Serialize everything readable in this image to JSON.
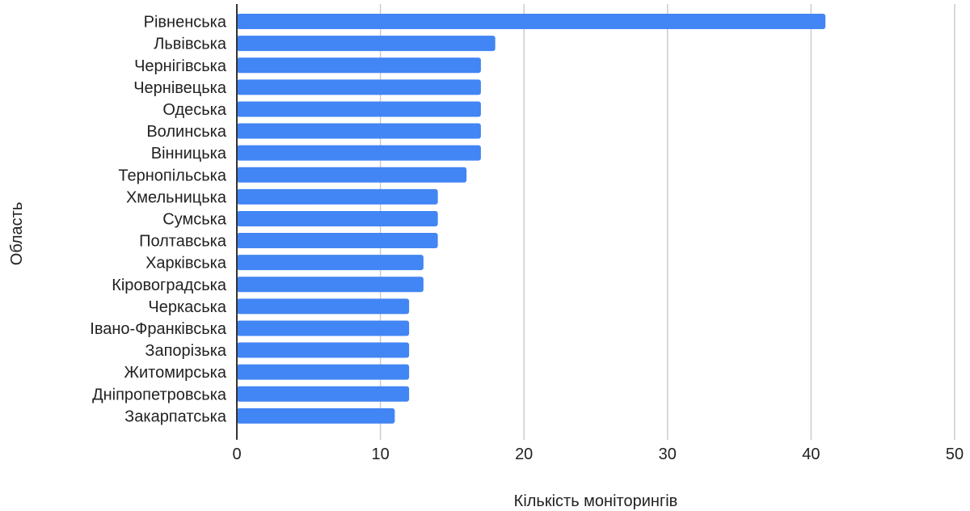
{
  "chart_data": {
    "type": "bar",
    "orientation": "horizontal",
    "xlabel": "Кількість моніторингів",
    "ylabel": "Область",
    "xlim": [
      0,
      50
    ],
    "xticks": [
      "0",
      "10",
      "20",
      "30",
      "40",
      "50"
    ],
    "grid": true,
    "legend": "none",
    "bar_color": "#4285f4",
    "categories": [
      "Рівненська",
      "Львівська",
      "Чернігівська",
      "Чернівецька",
      "Одеська",
      "Волинська",
      "Вінницька",
      "Тернопільська",
      "Хмельницька",
      "Сумська",
      "Полтавська",
      "Харківська",
      "Кіровоградська",
      "Черкаська",
      "Івано-Франківська",
      "Запорізька",
      "Житомирська",
      "Дніпропетровська",
      "Закарпатська"
    ],
    "values": [
      41,
      18,
      17,
      17,
      17,
      17,
      17,
      16,
      14,
      14,
      14,
      13,
      13,
      12,
      12,
      12,
      12,
      12,
      11
    ]
  }
}
